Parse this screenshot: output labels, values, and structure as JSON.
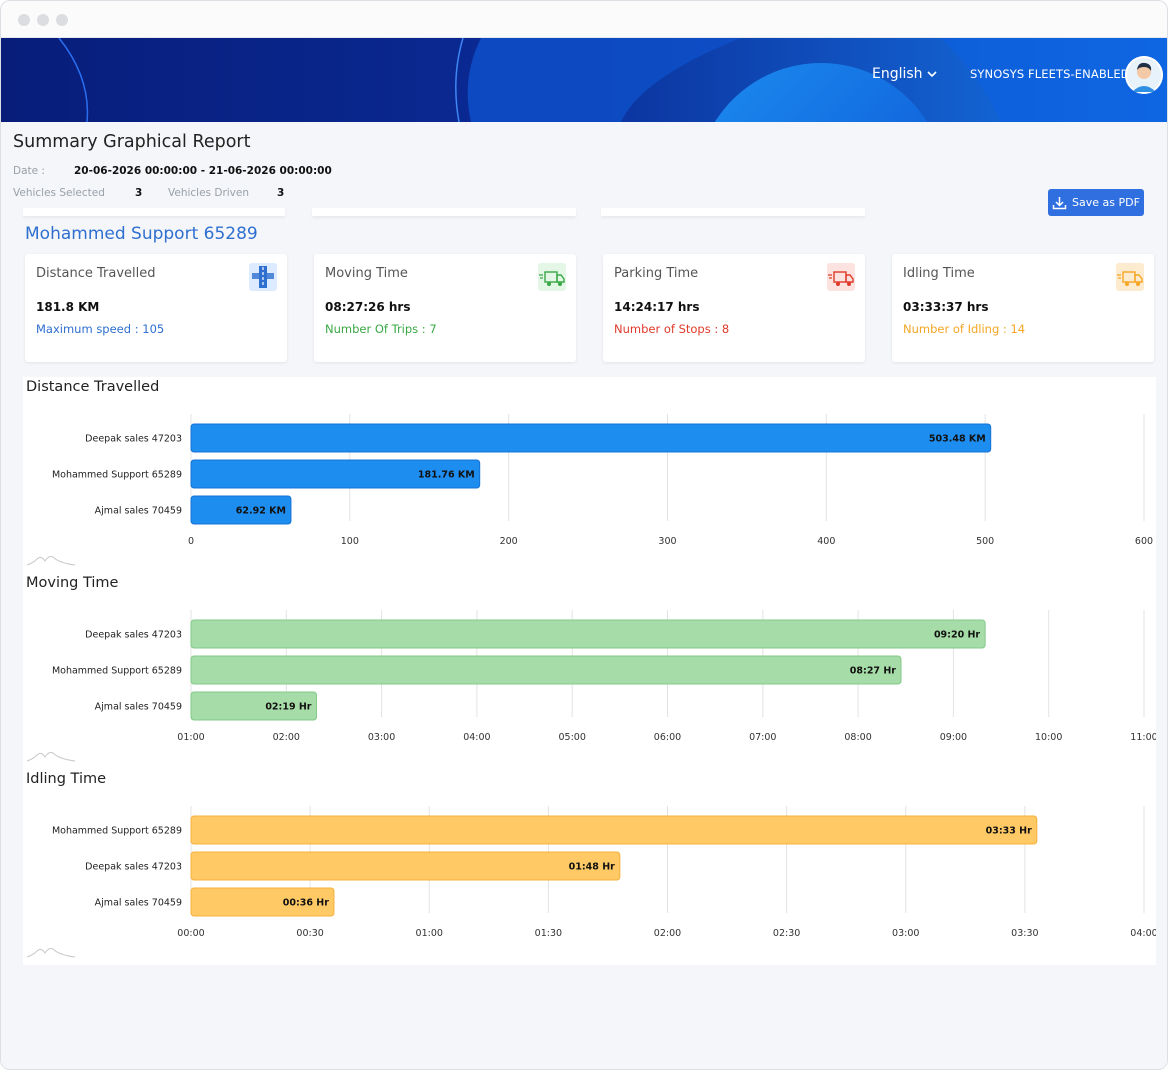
{
  "header": {
    "language": "English",
    "company": "SYNOSYS FLEETS-ENABLED"
  },
  "report": {
    "title": "Summary Graphical Report",
    "date_label": "Date :",
    "date_value": "20-06-2026 00:00:00 - 21-06-2026 00:00:00",
    "vehicles_selected_label": "Vehicles Selected",
    "vehicles_selected_value": "3",
    "vehicles_driven_label": "Vehicles Driven",
    "vehicles_driven_value": "3",
    "save_label": "Save as PDF",
    "vehicle_name": "Mohammed Support 65289"
  },
  "cards": [
    {
      "title": "Distance Travelled",
      "value": "181.8 KM",
      "sub": "Maximum speed : 105",
      "sub_color": "#2e6fd0",
      "icon": "road-icon"
    },
    {
      "title": "Moving Time",
      "value": "08:27:26 hrs",
      "sub": "Number Of Trips : 7",
      "sub_color": "#3aa845",
      "icon": "truck-moving-icon"
    },
    {
      "title": "Parking Time",
      "value": "14:24:17 hrs",
      "sub": "Number of Stops : 8",
      "sub_color": "#e03a2a",
      "icon": "truck-parked-icon"
    },
    {
      "title": "Idling Time",
      "value": "03:33:37 hrs",
      "sub": "Number of Idling : 14",
      "sub_color": "#f5a623",
      "icon": "truck-idle-icon"
    }
  ],
  "chart_data": [
    {
      "type": "bar",
      "orientation": "horizontal",
      "title": "Distance Travelled",
      "categories": [
        "Deepak sales 47203",
        "Mohammed Support 65289",
        "Ajmal sales 70459"
      ],
      "values": [
        503.48,
        181.76,
        62.92
      ],
      "value_labels": [
        "503.48 KM",
        "181.76 KM",
        "62.92 KM"
      ],
      "xlim": [
        0,
        600
      ],
      "ticks": [
        0,
        100,
        200,
        300,
        400,
        500,
        600
      ],
      "tick_labels": [
        "0",
        "100",
        "200",
        "300",
        "400",
        "500",
        "600"
      ],
      "fill": "#1e8df0",
      "stroke": "#1473d6",
      "grid": true
    },
    {
      "type": "bar",
      "orientation": "horizontal",
      "title": "Moving Time",
      "categories": [
        "Deepak sales 47203",
        "Mohammed Support 65289",
        "Ajmal sales 70459"
      ],
      "values": [
        9.333,
        8.45,
        2.317
      ],
      "value_labels": [
        "09:20 Hr",
        "08:27 Hr",
        "02:19 Hr"
      ],
      "xlim": [
        1,
        11
      ],
      "ticks": [
        1,
        2,
        3,
        4,
        5,
        6,
        7,
        8,
        9,
        10,
        11
      ],
      "tick_labels": [
        "01:00",
        "02:00",
        "03:00",
        "04:00",
        "05:00",
        "06:00",
        "07:00",
        "08:00",
        "09:00",
        "10:00",
        "11:00"
      ],
      "fill": "#a6dca7",
      "stroke": "#83c988",
      "grid": true
    },
    {
      "type": "bar",
      "orientation": "horizontal",
      "title": "Idling Time",
      "categories": [
        "Mohammed Support 65289",
        "Deepak sales 47203",
        "Ajmal sales 70459"
      ],
      "values": [
        3.55,
        1.8,
        0.6
      ],
      "value_labels": [
        "03:33 Hr",
        "01:48 Hr",
        "00:36 Hr"
      ],
      "xlim": [
        0,
        4
      ],
      "ticks": [
        0,
        0.5,
        1,
        1.5,
        2,
        2.5,
        3,
        3.5,
        4
      ],
      "tick_labels": [
        "00:00",
        "00:30",
        "01:00",
        "01:30",
        "02:00",
        "02:30",
        "03:00",
        "03:30",
        "04:00"
      ],
      "fill": "#ffc965",
      "stroke": "#f5b13c",
      "grid": true
    }
  ]
}
